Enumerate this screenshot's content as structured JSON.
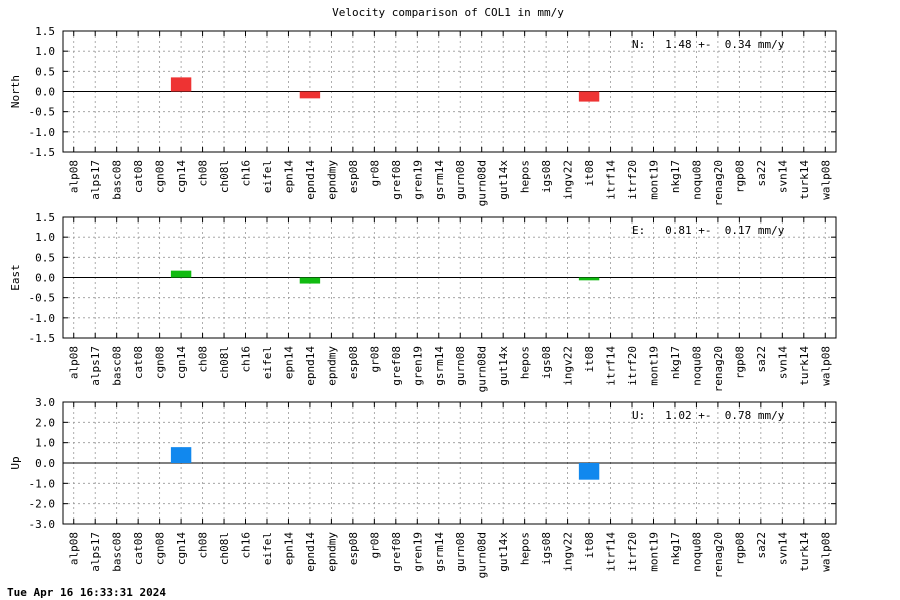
{
  "title": "Velocity comparison of COL1 in mm/y",
  "footer": "Tue Apr 16 16:33:31 2024",
  "chart_data": [
    {
      "type": "bar",
      "ylabel": "North",
      "ylim": [
        -1.5,
        1.5
      ],
      "ytick_labels": [
        "1.5",
        "1.0",
        "0.5",
        "0.0",
        "-0.5",
        "-1.0",
        "-1.5"
      ],
      "annotation": "N:   1.48 +-  0.34 mm/y",
      "color": "#ee3333",
      "categories": [
        "alp08",
        "alps17",
        "basc08",
        "cat08",
        "cgn08",
        "cgn14",
        "ch08",
        "ch08l",
        "ch16",
        "eifel",
        "epn14",
        "epnd14",
        "epndmy",
        "esp08",
        "gr08",
        "gref08",
        "gren19",
        "gsrm14",
        "gurn08",
        "gurn08d",
        "gut14x",
        "hepos",
        "igs08",
        "ingv22",
        "it08",
        "itrf14",
        "itrf20",
        "mont19",
        "nkg17",
        "noqu08",
        "renag20",
        "rgp08",
        "sa22",
        "svn14",
        "turk14",
        "walp08"
      ],
      "values": [
        0,
        0,
        0,
        0,
        0,
        0.35,
        0,
        0,
        0,
        0,
        0,
        -0.17,
        0,
        0,
        0,
        0,
        0,
        0,
        0,
        0,
        0,
        0,
        0,
        0,
        -0.25,
        0,
        0,
        0,
        0,
        0,
        0,
        0,
        0,
        0,
        0,
        0
      ],
      "grid": true
    },
    {
      "type": "bar",
      "ylabel": "East",
      "ylim": [
        -1.5,
        1.5
      ],
      "ytick_labels": [
        "1.5",
        "1.0",
        "0.5",
        "0.0",
        "-0.5",
        "-1.0",
        "-1.5"
      ],
      "annotation": "E:   0.81 +-  0.17 mm/y",
      "color": "#11bb11",
      "categories": [
        "alp08",
        "alps17",
        "basc08",
        "cat08",
        "cgn08",
        "cgn14",
        "ch08",
        "ch08l",
        "ch16",
        "eifel",
        "epn14",
        "epnd14",
        "epndmy",
        "esp08",
        "gr08",
        "gref08",
        "gren19",
        "gsrm14",
        "gurn08",
        "gurn08d",
        "gut14x",
        "hepos",
        "igs08",
        "ingv22",
        "it08",
        "itrf14",
        "itrf20",
        "mont19",
        "nkg17",
        "noqu08",
        "renag20",
        "rgp08",
        "sa22",
        "svn14",
        "turk14",
        "walp08"
      ],
      "values": [
        0,
        0,
        0,
        0,
        0,
        0.17,
        0,
        0,
        0,
        0,
        0,
        -0.15,
        0,
        0,
        0,
        0,
        0,
        0,
        0,
        0,
        0,
        0,
        0,
        0,
        -0.07,
        0,
        0,
        0,
        0,
        0,
        0,
        0,
        0,
        0,
        0,
        0
      ],
      "grid": true
    },
    {
      "type": "bar",
      "ylabel": "Up",
      "ylim": [
        -3.0,
        3.0
      ],
      "ytick_labels": [
        "3.0",
        "2.0",
        "1.0",
        "0.0",
        "-1.0",
        "-2.0",
        "-3.0"
      ],
      "annotation": "U:   1.02 +-  0.78 mm/y",
      "color": "#1188ee",
      "categories": [
        "alp08",
        "alps17",
        "basc08",
        "cat08",
        "cgn08",
        "cgn14",
        "ch08",
        "ch08l",
        "ch16",
        "eifel",
        "epn14",
        "epnd14",
        "epndmy",
        "esp08",
        "gr08",
        "gref08",
        "gren19",
        "gsrm14",
        "gurn08",
        "gurn08d",
        "gut14x",
        "hepos",
        "igs08",
        "ingv22",
        "it08",
        "itrf14",
        "itrf20",
        "mont19",
        "nkg17",
        "noqu08",
        "renag20",
        "rgp08",
        "sa22",
        "svn14",
        "turk14",
        "walp08"
      ],
      "values": [
        0,
        0,
        0,
        0,
        0,
        0.78,
        0,
        0,
        0,
        0,
        0,
        0,
        0,
        0,
        0,
        0,
        0,
        0,
        0,
        0,
        0,
        0,
        0,
        0,
        -0.82,
        0,
        0,
        0,
        0,
        0,
        0,
        0,
        0,
        0,
        0,
        0
      ],
      "grid": true
    }
  ]
}
